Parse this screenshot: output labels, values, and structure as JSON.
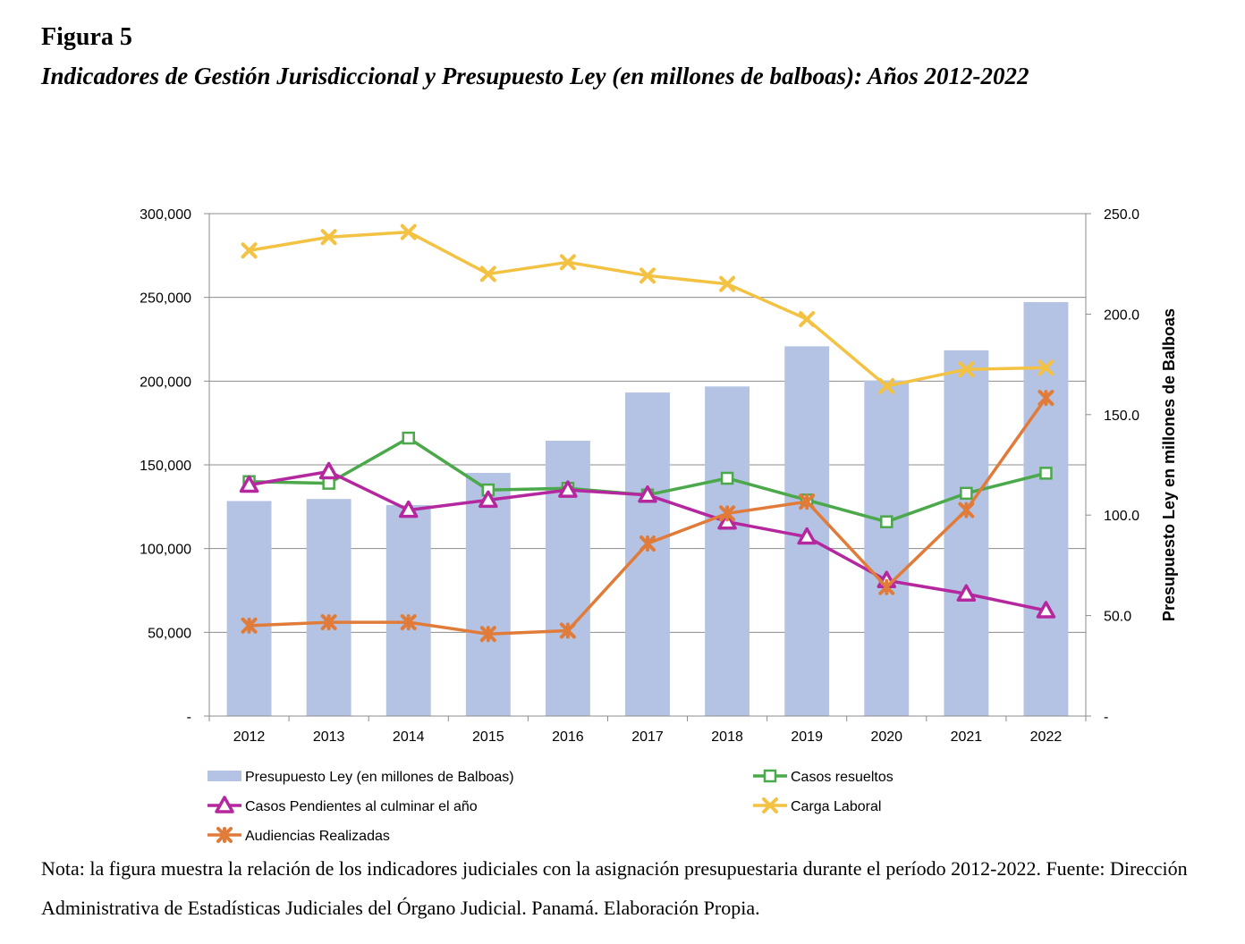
{
  "figure": {
    "label": "Figura 5",
    "title": "Indicadores de Gestión Jurisdiccional y Presupuesto Ley (en millones de balboas): Años 2012-2022",
    "note": "Nota:  la figura muestra la relación de los indicadores judiciales con la asignación presupuestaria durante el período 2012-2022. Fuente: Dirección Administrativa de Estadísticas Judiciales del Órgano Judicial. Panamá. Elaboración Propia."
  },
  "chart_data": {
    "type": "bar+line",
    "categories": [
      "2012",
      "2013",
      "2014",
      "2015",
      "2016",
      "2017",
      "2018",
      "2019",
      "2020",
      "2021",
      "2022"
    ],
    "left_axis": {
      "ylim": [
        0,
        300000
      ],
      "tick_values": [
        0,
        50000,
        100000,
        150000,
        200000,
        250000,
        300000
      ],
      "tick_labels": [
        "-",
        "50,000",
        "100,000",
        "150,000",
        "200,000",
        "250,000",
        "300,000"
      ]
    },
    "right_axis": {
      "label": "Presupuesto Ley en millones de Balboas",
      "ylim": [
        0,
        250
      ],
      "tick_values": [
        0,
        50,
        100,
        150,
        200,
        250
      ],
      "tick_labels": [
        "-",
        "50.0",
        "100.0",
        "150.0",
        "200.0",
        "250.0"
      ]
    },
    "grid": true,
    "legend_position": "bottom",
    "bar_series": {
      "name": "Presupuesto Ley  (en millones de Balboas)",
      "axis": "right",
      "color": "#b4c3e3",
      "values": [
        107,
        108,
        105,
        121,
        137,
        161,
        164,
        184,
        167,
        182,
        206
      ]
    },
    "line_series": [
      {
        "name": "Casos resueltos",
        "axis": "left",
        "color": "#4ba84b",
        "marker": "square",
        "values": [
          140000,
          139000,
          166000,
          135000,
          136000,
          132000,
          142000,
          129000,
          116000,
          133000,
          145000
        ]
      },
      {
        "name": "Casos Pendientes al culminar el año",
        "axis": "left",
        "color": "#b5279e",
        "marker": "triangle",
        "values": [
          138000,
          146000,
          123000,
          129000,
          135000,
          132000,
          116000,
          107000,
          81000,
          73000,
          63000
        ]
      },
      {
        "name": "Carga Laboral",
        "axis": "left",
        "color": "#f4c242",
        "marker": "x",
        "values": [
          278000,
          286000,
          289000,
          264000,
          271000,
          263000,
          258000,
          237000,
          197000,
          207000,
          208000
        ]
      },
      {
        "name": "Audiencias Realizadas",
        "axis": "left",
        "color": "#e07b3a",
        "marker": "xstar",
        "values": [
          54000,
          56000,
          56000,
          49000,
          51000,
          103000,
          121000,
          128000,
          77000,
          123000,
          190000
        ]
      }
    ]
  }
}
